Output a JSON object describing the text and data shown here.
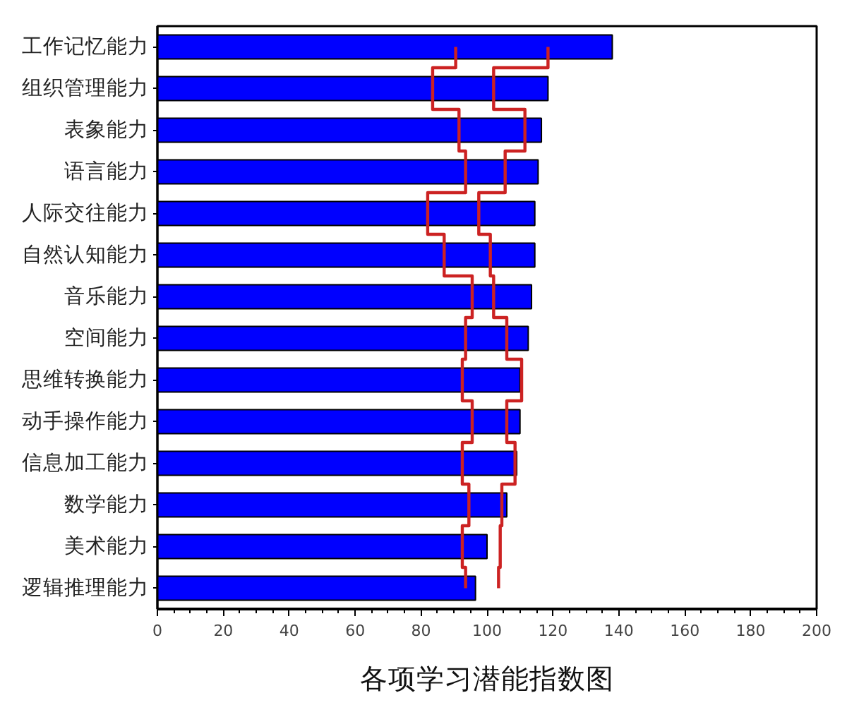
{
  "chart_data": {
    "type": "bar",
    "orientation": "horizontal",
    "title": "各项学习潜能指数图",
    "categories": [
      "工作记忆能力",
      "组织管理能力",
      "表象能力",
      "语言能力",
      "人际交往能力",
      "自然认知能力",
      "音乐能力",
      "空间能力",
      "思维转换能力",
      "动手操作能力",
      "信息加工能力",
      "数学能力",
      "美术能力",
      "逻辑推理能力"
    ],
    "series": [
      {
        "color": "#0000ff",
        "values": [
          138,
          118.5,
          116.5,
          115.5,
          114.5,
          114.5,
          113.5,
          112.5,
          110,
          110,
          109,
          106,
          100,
          96.5
        ]
      },
      {
        "type": "step",
        "color": "#cc2222",
        "values": [
          90.5,
          83.5,
          91.5,
          93.5,
          82,
          87,
          95.5,
          93.5,
          92.5,
          95.5,
          92.5,
          94.5,
          92.5,
          93.5
        ]
      },
      {
        "type": "step",
        "color": "#cc2222",
        "values": [
          118.5,
          102,
          111.5,
          105.5,
          97.5,
          101,
          102,
          106,
          110.5,
          106,
          108.5,
          104.5,
          104,
          103.5
        ]
      }
    ],
    "xlim": [
      0,
      200
    ],
    "xticks": [
      0,
      20,
      40,
      60,
      80,
      100,
      120,
      140,
      160,
      180,
      200
    ],
    "grid": false
  }
}
